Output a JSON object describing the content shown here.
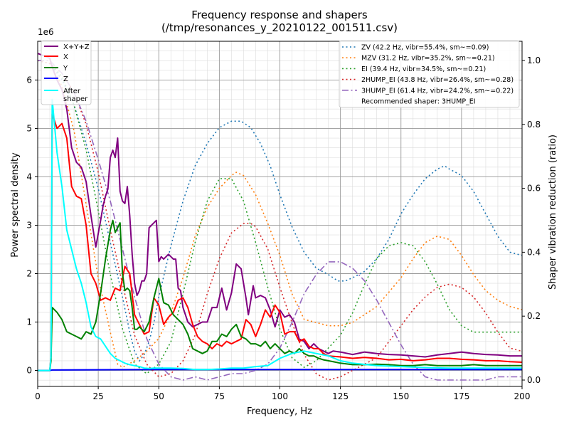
{
  "chart_data": {
    "type": "line",
    "title": "Frequency response and shapers",
    "subtitle": "(/tmp/resonances_y_20210122_001511.csv)",
    "xlabel": "Frequency, Hz",
    "ylabel": "Power spectral density",
    "ylabel_right": "Shaper vibration reduction (ratio)",
    "y_offset_text": "1e6",
    "xlim": [
      0,
      200
    ],
    "ylim": [
      -0.33,
      6.8
    ],
    "ylim_right": [
      -0.02,
      1.06
    ],
    "x_ticks": [
      0,
      25,
      50,
      75,
      100,
      125,
      150,
      175,
      200
    ],
    "y_ticks": [
      0,
      1,
      2,
      3,
      4,
      5,
      6
    ],
    "y_ticks_right": [
      0.0,
      0.2,
      0.4,
      0.6,
      0.8,
      1.0
    ],
    "x_minor_step": 5,
    "y_minor_step": 0.2,
    "grid": true,
    "legend_left": {
      "placement": "top-left",
      "entries": [
        "X+Y+Z",
        "X",
        "Y",
        "Z",
        "After\nshaper"
      ]
    },
    "legend_right": {
      "placement": "top-right",
      "entries": [
        "ZV (42.2 Hz, vibr=55.4%, sm~=0.09)",
        "MZV (31.2 Hz, vibr=35.2%, sm~=0.21)",
        "EI (39.4 Hz, vibr=34.5%, sm~=0.21)",
        "2HUMP_EI (43.8 Hz, vibr=26.4%, sm~=0.28)",
        "3HUMP_EI (61.4 Hz, vibr=24.2%, sm~=0.22)"
      ],
      "recommended": "Recommended shaper: 3HUMP_EI"
    },
    "psd_series": [
      {
        "name": "X+Y+Z",
        "color": "#800080",
        "width": 2,
        "x": [
          0,
          5,
          5.5,
          6.5,
          8,
          10,
          12,
          14,
          16,
          18,
          20,
          22,
          24,
          26,
          27,
          28,
          29,
          30,
          31,
          32,
          33,
          34,
          35,
          36,
          37,
          38,
          39,
          40,
          41,
          42,
          43,
          44,
          45,
          46,
          47,
          48,
          49,
          50,
          51,
          52,
          53,
          54,
          55,
          56,
          57,
          58,
          59,
          60,
          62,
          64,
          66,
          68,
          70,
          72,
          74,
          76,
          78,
          80,
          82,
          84,
          86,
          87,
          88,
          89,
          90,
          92,
          94,
          96,
          98,
          100,
          102,
          104,
          106,
          108,
          110,
          112,
          114,
          116,
          118,
          120,
          122,
          125,
          128,
          130,
          135,
          140,
          145,
          150,
          155,
          160,
          165,
          170,
          175,
          180,
          185,
          190,
          195,
          200
        ],
        "y": [
          6.55,
          6.45,
          6.35,
          6.2,
          6.0,
          5.8,
          5.4,
          4.6,
          4.3,
          4.2,
          3.9,
          3.2,
          2.55,
          3.1,
          3.4,
          3.6,
          3.75,
          4.4,
          4.55,
          4.4,
          4.8,
          3.7,
          3.5,
          3.45,
          3.8,
          3.2,
          2.4,
          1.8,
          1.55,
          1.65,
          1.85,
          1.85,
          2.0,
          2.95,
          3.0,
          3.05,
          3.1,
          2.25,
          2.35,
          2.3,
          2.35,
          2.4,
          2.35,
          2.3,
          2.3,
          1.7,
          1.65,
          1.3,
          1.0,
          0.9,
          0.95,
          1.0,
          1.0,
          1.3,
          1.3,
          1.7,
          1.25,
          1.6,
          2.2,
          2.1,
          1.5,
          1.15,
          1.45,
          1.75,
          1.5,
          1.55,
          1.5,
          1.25,
          0.9,
          1.25,
          1.1,
          1.15,
          1.0,
          0.65,
          0.6,
          0.45,
          0.55,
          0.45,
          0.4,
          0.35,
          0.4,
          0.38,
          0.35,
          0.33,
          0.38,
          0.35,
          0.33,
          0.32,
          0.3,
          0.28,
          0.32,
          0.35,
          0.38,
          0.35,
          0.33,
          0.32,
          0.3,
          0.3
        ]
      },
      {
        "name": "X",
        "color": "#ff0000",
        "width": 2,
        "x": [
          0,
          5,
          5.5,
          6,
          8,
          10,
          12,
          14,
          16,
          18,
          20,
          22,
          24,
          26,
          28,
          30,
          32,
          34,
          36,
          38,
          40,
          42,
          44,
          46,
          48,
          50,
          52,
          54,
          56,
          58,
          60,
          62,
          64,
          66,
          68,
          70,
          72,
          74,
          76,
          78,
          80,
          82,
          84,
          86,
          88,
          90,
          92,
          94,
          96,
          98,
          100,
          102,
          104,
          106,
          108,
          110,
          112,
          114,
          116,
          118,
          120,
          125,
          130,
          135,
          140,
          145,
          150,
          155,
          160,
          165,
          170,
          175,
          180,
          185,
          190,
          195,
          200
        ],
        "y": [
          0,
          0,
          0.3,
          5.3,
          5.0,
          5.1,
          4.8,
          3.8,
          3.6,
          3.55,
          3.0,
          2.0,
          1.8,
          1.45,
          1.5,
          1.45,
          1.7,
          1.65,
          2.15,
          2.0,
          1.15,
          0.95,
          0.75,
          0.8,
          1.5,
          1.35,
          0.95,
          1.1,
          1.2,
          1.45,
          1.5,
          1.3,
          0.95,
          0.7,
          0.6,
          0.55,
          0.45,
          0.55,
          0.5,
          0.6,
          0.55,
          0.6,
          0.65,
          1.05,
          0.95,
          0.7,
          0.95,
          1.25,
          1.1,
          1.35,
          1.2,
          0.75,
          0.8,
          0.8,
          0.6,
          0.65,
          0.5,
          0.45,
          0.45,
          0.35,
          0.3,
          0.28,
          0.25,
          0.27,
          0.25,
          0.22,
          0.23,
          0.2,
          0.22,
          0.25,
          0.25,
          0.23,
          0.22,
          0.2,
          0.2,
          0.18,
          0.17
        ]
      },
      {
        "name": "Y",
        "color": "#008000",
        "width": 2,
        "x": [
          0,
          5,
          5.5,
          6,
          8,
          10,
          12,
          14,
          16,
          18,
          20,
          22,
          24,
          26,
          28,
          30,
          31,
          32,
          33,
          34,
          35,
          36,
          37,
          38,
          39,
          40,
          41,
          42,
          44,
          46,
          48,
          50,
          52,
          54,
          56,
          58,
          60,
          62,
          64,
          66,
          68,
          70,
          72,
          74,
          76,
          78,
          80,
          82,
          84,
          86,
          88,
          90,
          92,
          94,
          96,
          98,
          100,
          102,
          104,
          106,
          108,
          110,
          112,
          114,
          116,
          118,
          120,
          125,
          130,
          135,
          140,
          145,
          150,
          155,
          160,
          165,
          170,
          175,
          180,
          185,
          190,
          195,
          200
        ],
        "y": [
          0,
          0,
          0.2,
          1.3,
          1.2,
          1.05,
          0.8,
          0.75,
          0.7,
          0.65,
          0.8,
          0.75,
          1.0,
          1.6,
          2.3,
          2.9,
          3.1,
          2.85,
          2.95,
          3.05,
          2.0,
          1.65,
          1.7,
          1.65,
          1.3,
          0.85,
          0.85,
          0.9,
          0.8,
          1.0,
          1.5,
          1.9,
          1.4,
          1.35,
          1.15,
          1.05,
          0.95,
          0.75,
          0.45,
          0.4,
          0.35,
          0.4,
          0.6,
          0.6,
          0.75,
          0.7,
          0.85,
          0.95,
          0.7,
          0.65,
          0.55,
          0.55,
          0.5,
          0.6,
          0.45,
          0.55,
          0.45,
          0.35,
          0.4,
          0.35,
          0.45,
          0.35,
          0.3,
          0.3,
          0.25,
          0.22,
          0.2,
          0.15,
          0.12,
          0.12,
          0.13,
          0.12,
          0.1,
          0.1,
          0.12,
          0.1,
          0.1,
          0.1,
          0.12,
          0.1,
          0.1,
          0.1,
          0.1
        ]
      },
      {
        "name": "Z",
        "color": "#0000ff",
        "width": 2,
        "x": [
          0,
          5,
          6,
          50,
          100,
          150,
          200
        ],
        "y": [
          0,
          0,
          0.01,
          0.02,
          0.02,
          0.02,
          0.02
        ]
      },
      {
        "name": "After\nshaper",
        "color": "#00ffff",
        "width": 2,
        "x": [
          0,
          5,
          5.5,
          6,
          8,
          10,
          12,
          14,
          16,
          18,
          20,
          22,
          24,
          26,
          28,
          30,
          32,
          34,
          36,
          38,
          40,
          42,
          44,
          46,
          48,
          50,
          55,
          60,
          65,
          70,
          75,
          80,
          85,
          90,
          95,
          100,
          105,
          110,
          115,
          120,
          125,
          130,
          140,
          150,
          160,
          170,
          180,
          190,
          200
        ],
        "y": [
          0,
          0,
          0.3,
          5.6,
          4.5,
          3.8,
          2.9,
          2.5,
          2.1,
          1.8,
          1.4,
          0.9,
          0.7,
          0.65,
          0.5,
          0.35,
          0.25,
          0.2,
          0.15,
          0.12,
          0.1,
          0.08,
          0.05,
          0.04,
          0.05,
          0.05,
          0.05,
          0.04,
          0.02,
          0.02,
          0.03,
          0.05,
          0.05,
          0.08,
          0.1,
          0.25,
          0.35,
          0.4,
          0.35,
          0.3,
          0.2,
          0.15,
          0.1,
          0.08,
          0.06,
          0.05,
          0.05,
          0.05,
          0.05
        ]
      }
    ],
    "shaper_series": [
      {
        "name": "ZV (42.2 Hz, vibr=55.4%, sm~=0.09)",
        "color": "#1f77b4",
        "dash": "dotted",
        "x": [
          0,
          5,
          10,
          15,
          20,
          25,
          30,
          35,
          38,
          40,
          42,
          44,
          46,
          48,
          50,
          55,
          60,
          65,
          70,
          75,
          80,
          84,
          88,
          92,
          96,
          100,
          105,
          110,
          115,
          120,
          124,
          127,
          130,
          135,
          140,
          145,
          150,
          155,
          160,
          165,
          168,
          170,
          175,
          180,
          185,
          190,
          195,
          200
        ],
        "y": [
          1.0,
          0.99,
          0.94,
          0.86,
          0.74,
          0.6,
          0.43,
          0.26,
          0.15,
          0.09,
          0.06,
          0.08,
          0.12,
          0.18,
          0.26,
          0.42,
          0.56,
          0.67,
          0.74,
          0.79,
          0.81,
          0.81,
          0.79,
          0.74,
          0.67,
          0.58,
          0.48,
          0.4,
          0.35,
          0.33,
          0.31,
          0.31,
          0.32,
          0.34,
          0.38,
          0.44,
          0.52,
          0.58,
          0.63,
          0.66,
          0.67,
          0.66,
          0.64,
          0.59,
          0.52,
          0.45,
          0.4,
          0.39
        ]
      },
      {
        "name": "MZV (31.2 Hz, vibr=35.2%, sm~=0.21)",
        "color": "#ff7f0e",
        "dash": "dotted",
        "x": [
          0,
          5,
          10,
          15,
          20,
          25,
          30,
          33,
          35,
          40,
          45,
          50,
          55,
          60,
          65,
          70,
          75,
          80,
          82,
          85,
          90,
          95,
          100,
          105,
          110,
          115,
          120,
          125,
          130,
          140,
          150,
          155,
          160,
          165,
          170,
          175,
          180,
          185,
          190,
          195,
          200
        ],
        "y": [
          1.0,
          0.99,
          0.92,
          0.78,
          0.55,
          0.32,
          0.15,
          0.05,
          0.04,
          0.06,
          0.09,
          0.13,
          0.21,
          0.32,
          0.45,
          0.54,
          0.6,
          0.64,
          0.65,
          0.64,
          0.58,
          0.49,
          0.39,
          0.27,
          0.19,
          0.18,
          0.17,
          0.17,
          0.18,
          0.23,
          0.32,
          0.38,
          0.43,
          0.45,
          0.44,
          0.39,
          0.33,
          0.28,
          0.25,
          0.23,
          0.22
        ]
      },
      {
        "name": "EI (39.4 Hz, vibr=34.5%, sm~=0.21)",
        "color": "#2ca02c",
        "dash": "dotted",
        "x": [
          0,
          5,
          10,
          15,
          20,
          25,
          30,
          35,
          40,
          45,
          50,
          55,
          60,
          65,
          70,
          75,
          80,
          85,
          90,
          95,
          100,
          105,
          110,
          115,
          120,
          125,
          130,
          135,
          140,
          145,
          150,
          155,
          160,
          165,
          170,
          175,
          180,
          185,
          190,
          195,
          200
        ],
        "y": [
          1.0,
          0.99,
          0.95,
          0.86,
          0.72,
          0.53,
          0.33,
          0.16,
          0.05,
          0.02,
          0.05,
          0.12,
          0.27,
          0.43,
          0.56,
          0.63,
          0.63,
          0.56,
          0.43,
          0.29,
          0.16,
          0.07,
          0.04,
          0.06,
          0.1,
          0.14,
          0.21,
          0.3,
          0.38,
          0.42,
          0.43,
          0.42,
          0.37,
          0.3,
          0.22,
          0.17,
          0.15,
          0.15,
          0.15,
          0.15,
          0.15
        ]
      },
      {
        "name": "2HUMP_EI (43.8 Hz, vibr=26.4%, sm~=0.28)",
        "color": "#d62728",
        "dash": "dotted",
        "x": [
          0,
          5,
          10,
          15,
          20,
          25,
          30,
          35,
          40,
          45,
          50,
          55,
          60,
          65,
          70,
          75,
          80,
          85,
          88,
          90,
          95,
          100,
          105,
          110,
          115,
          120,
          125,
          130,
          135,
          140,
          145,
          150,
          155,
          160,
          165,
          170,
          175,
          180,
          185,
          190,
          195,
          200
        ],
        "y": [
          1.0,
          0.99,
          0.96,
          0.9,
          0.8,
          0.65,
          0.47,
          0.3,
          0.14,
          0.05,
          0.01,
          0.02,
          0.06,
          0.14,
          0.27,
          0.38,
          0.46,
          0.49,
          0.49,
          0.48,
          0.41,
          0.29,
          0.18,
          0.08,
          0.02,
          0.0,
          0.01,
          0.03,
          0.05,
          0.07,
          0.12,
          0.17,
          0.22,
          0.26,
          0.29,
          0.3,
          0.29,
          0.26,
          0.21,
          0.15,
          0.1,
          0.09
        ]
      },
      {
        "name": "3HUMP_EI (61.4 Hz, vibr=24.2%, sm~=0.22)",
        "color": "#9467bd",
        "dash": "dashdot",
        "x": [
          0,
          5,
          10,
          15,
          20,
          25,
          30,
          35,
          40,
          45,
          50,
          55,
          60,
          65,
          70,
          75,
          80,
          85,
          90,
          95,
          100,
          105,
          110,
          115,
          120,
          123,
          125,
          130,
          135,
          140,
          145,
          150,
          155,
          160,
          165,
          170,
          175,
          180,
          185,
          190,
          195,
          200
        ],
        "y": [
          1.0,
          1.0,
          0.96,
          0.9,
          0.81,
          0.69,
          0.56,
          0.41,
          0.26,
          0.13,
          0.05,
          0.01,
          0.0,
          0.01,
          0.0,
          0.01,
          0.02,
          0.02,
          0.03,
          0.05,
          0.1,
          0.18,
          0.27,
          0.33,
          0.37,
          0.37,
          0.37,
          0.35,
          0.31,
          0.25,
          0.18,
          0.11,
          0.05,
          0.01,
          0.0,
          0.0,
          0.0,
          0.0,
          0.0,
          0.01,
          0.01,
          0.01
        ]
      }
    ]
  }
}
